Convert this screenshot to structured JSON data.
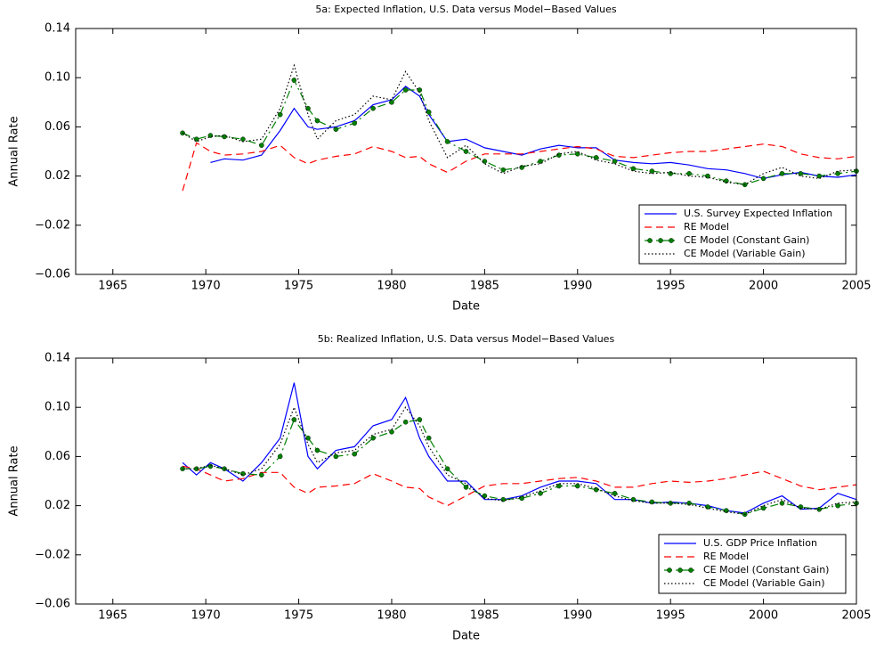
{
  "chart_data": [
    {
      "type": "line",
      "title": "5a: Expected Inflation, U.S. Data versus Model−Based Values",
      "xlabel": "Date",
      "ylabel": "Annual Rate",
      "x": [
        1968.75,
        1969.5,
        1970.25,
        1971,
        1972,
        1973,
        1974,
        1974.75,
        1975.5,
        1976,
        1977,
        1978,
        1979,
        1980,
        1980.75,
        1981.5,
        1982,
        1983,
        1984,
        1985,
        1986,
        1987,
        1988,
        1989,
        1990,
        1991,
        1992,
        1993,
        1994,
        1995,
        1996,
        1997,
        1998,
        1999,
        2000,
        2001,
        2002,
        2003,
        2004,
        2005
      ],
      "xlim": [
        1963,
        2005
      ],
      "xticks": [
        1965,
        1970,
        1975,
        1980,
        1985,
        1990,
        1995,
        2000,
        2005
      ],
      "ylim": [
        -0.06,
        0.14
      ],
      "yticks": [
        {
          "value": -0.06,
          "label": "−0.06"
        },
        {
          "value": -0.02,
          "label": "−0.02"
        },
        0.02,
        0.06,
        {
          "value": 0.1,
          "label": "0.10"
        },
        0.14
      ],
      "legend": "lower right",
      "series": [
        {
          "name": "U.S. Survey Expected Inflation",
          "color": "#0000ff",
          "linestyle": "solid",
          "values": [
            null,
            null,
            0.031,
            0.034,
            0.033,
            0.037,
            0.057,
            0.075,
            0.06,
            0.058,
            0.06,
            0.065,
            0.078,
            0.082,
            0.093,
            0.085,
            0.07,
            0.048,
            0.05,
            0.043,
            0.04,
            0.037,
            0.042,
            0.045,
            0.043,
            0.043,
            0.033,
            0.031,
            0.03,
            0.031,
            0.029,
            0.026,
            0.025,
            0.022,
            0.018,
            0.021,
            0.023,
            0.02,
            0.019,
            0.021
          ]
        },
        {
          "name": "RE Model",
          "color": "#ff0000",
          "linestyle": "dashed",
          "values": [
            0.008,
            0.047,
            0.04,
            0.037,
            0.038,
            0.04,
            0.045,
            0.035,
            0.03,
            0.033,
            0.036,
            0.038,
            0.044,
            0.04,
            0.035,
            0.036,
            0.03,
            0.023,
            0.032,
            0.038,
            0.038,
            0.038,
            0.04,
            0.042,
            0.044,
            0.042,
            0.036,
            0.035,
            0.037,
            0.039,
            0.04,
            0.04,
            0.042,
            0.044,
            0.046,
            0.044,
            0.038,
            0.035,
            0.034,
            0.036
          ]
        },
        {
          "name": "CE Model (Constant Gain)",
          "color": "#008000",
          "linestyle": "dashdot",
          "marker": "o",
          "values": [
            0.055,
            0.05,
            0.053,
            0.052,
            0.05,
            0.045,
            0.07,
            0.098,
            0.075,
            0.065,
            0.058,
            0.063,
            0.075,
            0.08,
            0.09,
            0.09,
            0.072,
            0.048,
            0.04,
            0.032,
            0.025,
            0.027,
            0.032,
            0.037,
            0.038,
            0.035,
            0.032,
            0.026,
            0.024,
            0.022,
            0.022,
            0.02,
            0.016,
            0.013,
            0.018,
            0.022,
            0.022,
            0.02,
            0.022,
            0.024
          ]
        },
        {
          "name": "CE Model (Variable Gain)",
          "color": "#000000",
          "linestyle": "dotted",
          "values": [
            0.055,
            0.048,
            0.052,
            0.053,
            0.048,
            0.05,
            0.075,
            0.11,
            0.07,
            0.05,
            0.065,
            0.07,
            0.085,
            0.082,
            0.105,
            0.088,
            0.065,
            0.035,
            0.045,
            0.03,
            0.022,
            0.028,
            0.03,
            0.038,
            0.04,
            0.033,
            0.03,
            0.024,
            0.022,
            0.023,
            0.02,
            0.019,
            0.015,
            0.013,
            0.022,
            0.027,
            0.02,
            0.018,
            0.024,
            0.025
          ]
        }
      ]
    },
    {
      "type": "line",
      "title": "5b: Realized Inflation, U.S. Data versus Model−Based Values",
      "xlabel": "Date",
      "ylabel": "Annual Rate",
      "x": [
        1968.75,
        1969.5,
        1970.25,
        1971,
        1972,
        1973,
        1974,
        1974.75,
        1975.5,
        1976,
        1977,
        1978,
        1979,
        1980,
        1980.75,
        1981.5,
        1982,
        1983,
        1984,
        1985,
        1986,
        1987,
        1988,
        1989,
        1990,
        1991,
        1992,
        1993,
        1994,
        1995,
        1996,
        1997,
        1998,
        1999,
        2000,
        2001,
        2002,
        2003,
        2004,
        2005
      ],
      "xlim": [
        1963,
        2005
      ],
      "xticks": [
        1965,
        1970,
        1975,
        1980,
        1985,
        1990,
        1995,
        2000,
        2005
      ],
      "ylim": [
        -0.06,
        0.14
      ],
      "yticks": [
        {
          "value": -0.06,
          "label": "−0.06"
        },
        {
          "value": -0.02,
          "label": "−0.02"
        },
        0.02,
        0.06,
        {
          "value": 0.1,
          "label": "0.10"
        },
        0.14
      ],
      "legend": "lower right",
      "series": [
        {
          "name": "U.S. GDP Price Inflation",
          "color": "#0000ff",
          "linestyle": "solid",
          "values": [
            0.055,
            0.045,
            0.055,
            0.05,
            0.04,
            0.055,
            0.075,
            0.12,
            0.06,
            0.05,
            0.065,
            0.068,
            0.085,
            0.09,
            0.108,
            0.075,
            0.06,
            0.04,
            0.04,
            0.025,
            0.025,
            0.028,
            0.035,
            0.04,
            0.04,
            0.038,
            0.025,
            0.025,
            0.022,
            0.023,
            0.022,
            0.02,
            0.016,
            0.014,
            0.022,
            0.028,
            0.017,
            0.018,
            0.03,
            0.025
          ]
        },
        {
          "name": "RE Model",
          "color": "#ff0000",
          "linestyle": "dashed",
          "values": [
            0.052,
            0.05,
            0.045,
            0.04,
            0.042,
            0.047,
            0.047,
            0.035,
            0.03,
            0.035,
            0.036,
            0.038,
            0.046,
            0.04,
            0.035,
            0.034,
            0.027,
            0.02,
            0.028,
            0.036,
            0.038,
            0.038,
            0.04,
            0.042,
            0.043,
            0.04,
            0.035,
            0.035,
            0.038,
            0.04,
            0.039,
            0.04,
            0.042,
            0.045,
            0.048,
            0.042,
            0.036,
            0.033,
            0.035,
            0.037
          ]
        },
        {
          "name": "CE Model (Constant Gain)",
          "color": "#008000",
          "linestyle": "dashdot",
          "marker": "o",
          "values": [
            0.05,
            0.05,
            0.052,
            0.05,
            0.046,
            0.045,
            0.06,
            0.09,
            0.075,
            0.065,
            0.06,
            0.062,
            0.075,
            0.08,
            0.088,
            0.09,
            0.075,
            0.05,
            0.035,
            0.028,
            0.025,
            0.026,
            0.03,
            0.036,
            0.036,
            0.033,
            0.03,
            0.025,
            0.023,
            0.022,
            0.022,
            0.019,
            0.016,
            0.013,
            0.018,
            0.022,
            0.019,
            0.017,
            0.02,
            0.022
          ]
        },
        {
          "name": "CE Model (Variable Gain)",
          "color": "#000000",
          "linestyle": "dotted",
          "values": [
            0.05,
            0.05,
            0.053,
            0.05,
            0.045,
            0.05,
            0.07,
            0.1,
            0.07,
            0.055,
            0.063,
            0.065,
            0.078,
            0.082,
            0.1,
            0.085,
            0.068,
            0.045,
            0.038,
            0.026,
            0.024,
            0.027,
            0.032,
            0.038,
            0.038,
            0.034,
            0.028,
            0.024,
            0.022,
            0.022,
            0.021,
            0.018,
            0.015,
            0.013,
            0.02,
            0.025,
            0.018,
            0.017,
            0.022,
            0.023
          ]
        }
      ]
    }
  ]
}
